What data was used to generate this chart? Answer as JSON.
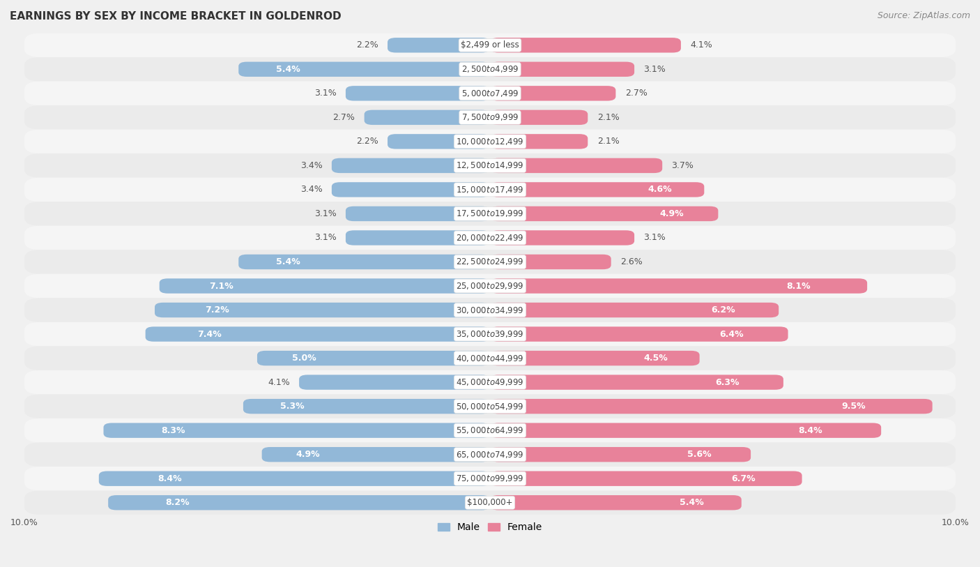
{
  "title": "EARNINGS BY SEX BY INCOME BRACKET IN GOLDENROD",
  "source": "Source: ZipAtlas.com",
  "categories": [
    "$2,499 or less",
    "$2,500 to $4,999",
    "$5,000 to $7,499",
    "$7,500 to $9,999",
    "$10,000 to $12,499",
    "$12,500 to $14,999",
    "$15,000 to $17,499",
    "$17,500 to $19,999",
    "$20,000 to $22,499",
    "$22,500 to $24,999",
    "$25,000 to $29,999",
    "$30,000 to $34,999",
    "$35,000 to $39,999",
    "$40,000 to $44,999",
    "$45,000 to $49,999",
    "$50,000 to $54,999",
    "$55,000 to $64,999",
    "$65,000 to $74,999",
    "$75,000 to $99,999",
    "$100,000+"
  ],
  "male_values": [
    2.2,
    5.4,
    3.1,
    2.7,
    2.2,
    3.4,
    3.4,
    3.1,
    3.1,
    5.4,
    7.1,
    7.2,
    7.4,
    5.0,
    4.1,
    5.3,
    8.3,
    4.9,
    8.4,
    8.2
  ],
  "female_values": [
    4.1,
    3.1,
    2.7,
    2.1,
    2.1,
    3.7,
    4.6,
    4.9,
    3.1,
    2.6,
    8.1,
    6.2,
    6.4,
    4.5,
    6.3,
    9.5,
    8.4,
    5.6,
    6.7,
    5.4
  ],
  "male_color": "#92b8d8",
  "female_color": "#e8829a",
  "row_color_odd": "#ebebeb",
  "row_color_even": "#f5f5f5",
  "background_color": "#f0f0f0",
  "axis_max": 10.0,
  "title_fontsize": 11,
  "source_fontsize": 9,
  "label_fontsize": 9,
  "category_fontsize": 8.5,
  "bar_height": 0.62,
  "legend_male": "Male",
  "legend_female": "Female",
  "value_label_threshold": 4.5
}
